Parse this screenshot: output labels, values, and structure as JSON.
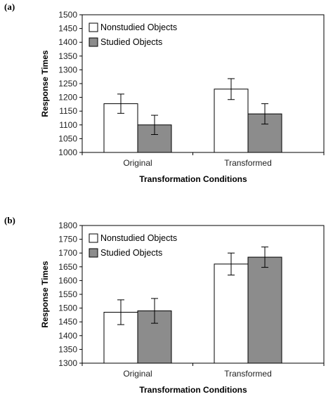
{
  "chart_data": [
    {
      "panel": "(a)",
      "type": "bar",
      "title": "",
      "xlabel": "Transformation Conditions",
      "ylabel": "Response Times",
      "categories": [
        "Original",
        "Transformed"
      ],
      "ylim": [
        1000,
        1500
      ],
      "yticks": [
        1000,
        1050,
        1100,
        1150,
        1200,
        1250,
        1300,
        1350,
        1400,
        1450,
        1500
      ],
      "series": [
        {
          "name": "Nonstudied Objects",
          "values": [
            1177,
            1230
          ],
          "errors": [
            35,
            38
          ],
          "color": "#ffffff"
        },
        {
          "name": "Studied Objects",
          "values": [
            1100,
            1140
          ],
          "errors": [
            35,
            37
          ],
          "color": "#8c8c8c"
        }
      ],
      "grid": false,
      "legend": "top-left"
    },
    {
      "panel": "(b)",
      "type": "bar",
      "title": "",
      "xlabel": "Transformation Conditions",
      "ylabel": "Response Times",
      "categories": [
        "Original",
        "Transformed"
      ],
      "ylim": [
        1300,
        1800
      ],
      "yticks": [
        1300,
        1350,
        1400,
        1450,
        1500,
        1550,
        1600,
        1650,
        1700,
        1750,
        1800
      ],
      "series": [
        {
          "name": "Nonstudied Objects",
          "values": [
            1485,
            1660
          ],
          "errors": [
            45,
            40
          ],
          "color": "#ffffff"
        },
        {
          "name": "Studied Objects",
          "values": [
            1490,
            1685
          ],
          "errors": [
            45,
            37
          ],
          "color": "#8c8c8c"
        }
      ],
      "grid": false,
      "legend": "top-left"
    }
  ]
}
